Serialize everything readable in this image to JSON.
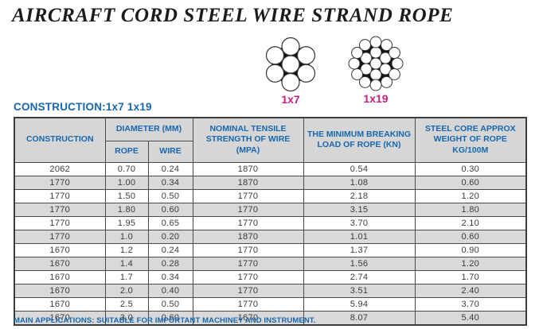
{
  "page": {
    "title": "AIRCRAFT CORD STEEL WIRE STRAND ROPE",
    "construction_line": "CONSTRUCTION:1x7 1x19",
    "footer": "MAIN APPLICATIONS: SUITABLE FOR IMPORTANT MACHINEY AND INSTRUMENT."
  },
  "diagrams": [
    {
      "name": "strand-cross-section-1x7",
      "label": "1x7"
    },
    {
      "name": "strand-cross-section-1x19",
      "label": "1x19"
    }
  ],
  "colors": {
    "accent-blue": "#1767ae",
    "accent-pink": "#c5217d",
    "header-bg": "#d6d6d6",
    "row-alt-bg": "#d9d9d9",
    "grid-border": "#4a4a4a",
    "text-dark": "#3b3b3b"
  },
  "table": {
    "headers": {
      "construction": "CONSTRUCTION",
      "diameter": "DIAMETER (MM)",
      "rope": "ROPE",
      "wire": "WIRE",
      "tensile": "NOMINAL TENSILE STRENGTH OF WIRE (MPA)",
      "breaking": "THE MINIMUM BREAKING LOAD OF ROPE (KN)",
      "weight": "STEEL CORE APPROX WEIGHT OF ROPE KG/100M"
    },
    "rows": [
      [
        "2062",
        "0.70",
        "0.24",
        "1870",
        "0.54",
        "0.30"
      ],
      [
        "1770",
        "1.00",
        "0.34",
        "1870",
        "1.08",
        "0.60"
      ],
      [
        "1770",
        "1.50",
        "0.50",
        "1770",
        "2.18",
        "1.20"
      ],
      [
        "1770",
        "1.80",
        "0.60",
        "1770",
        "3.15",
        "1.80"
      ],
      [
        "1770",
        "1.95",
        "0.65",
        "1770",
        "3.70",
        "2.10"
      ],
      [
        "1770",
        "1.0",
        "0.20",
        "1870",
        "1.01",
        "0.60"
      ],
      [
        "1670",
        "1.2",
        "0.24",
        "1770",
        "1.37",
        "0.90"
      ],
      [
        "1670",
        "1.4",
        "0.28",
        "1770",
        "1.56",
        "1.20"
      ],
      [
        "1670",
        "1.7",
        "0.34",
        "1770",
        "2.74",
        "1.70"
      ],
      [
        "1670",
        "2.0",
        "0.40",
        "1770",
        "3.51",
        "2.40"
      ],
      [
        "1670",
        "2.5",
        "0.50",
        "1770",
        "5.94",
        "3.70"
      ],
      [
        "1670",
        "3.0",
        "0.60",
        "1670",
        "8.07",
        "5.40"
      ]
    ]
  }
}
